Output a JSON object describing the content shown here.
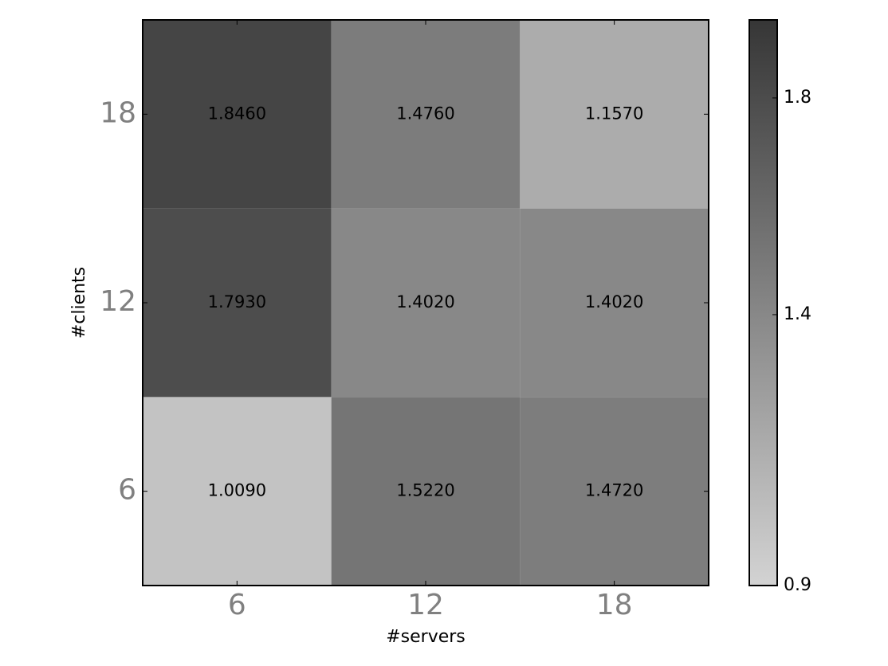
{
  "chart_data": {
    "type": "heatmap",
    "xlabel": "#servers",
    "ylabel": "#clients",
    "x_categories": [
      "6",
      "12",
      "18"
    ],
    "y_categories": [
      "6",
      "12",
      "18"
    ],
    "values": [
      [
        1.009,
        1.522,
        1.472
      ],
      [
        1.793,
        1.402,
        1.402
      ],
      [
        1.846,
        1.476,
        1.157
      ]
    ],
    "value_labels": [
      [
        "1.0090",
        "1.5220",
        "1.4720"
      ],
      [
        "1.7930",
        "1.4020",
        "1.4020"
      ],
      [
        "1.8460",
        "1.4760",
        "1.1570"
      ]
    ],
    "colormap": [
      "#d3d3d3",
      "#363636"
    ],
    "clim": [
      0.9,
      1.944
    ],
    "cticks": [
      0.9,
      1.4,
      1.8
    ]
  }
}
